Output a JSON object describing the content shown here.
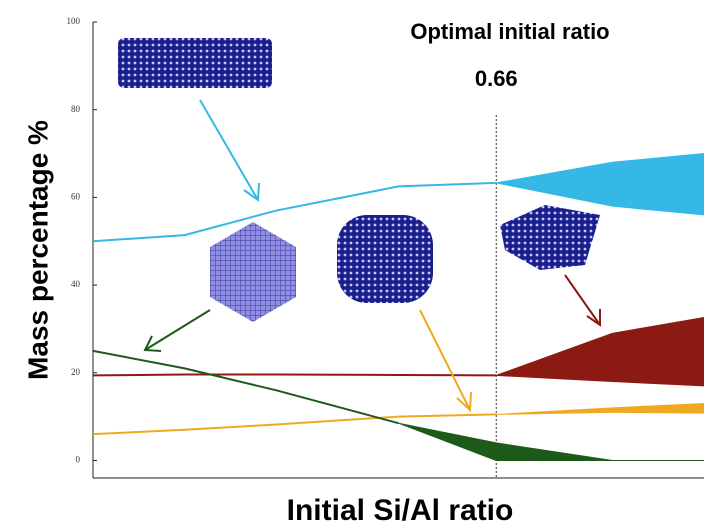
{
  "chart_data": {
    "type": "line",
    "annotation": "Optimal initial ratio",
    "vline": 0.66,
    "xlabel": "Initial Si/Al ratio",
    "ylabel": "Mass percentage %",
    "xlim": [
      0,
      1
    ],
    "ylim": [
      -4,
      100
    ],
    "yticks": [
      0,
      20,
      40,
      60,
      80,
      100
    ],
    "x": [
      0,
      0.15,
      0.3,
      0.5,
      0.66,
      0.85,
      1.0
    ],
    "series": [
      {
        "color": "#35b8e6",
        "values": [
          50,
          51.4,
          57,
          62.5,
          63.3,
          null,
          null
        ],
        "upper": [
          null,
          null,
          null,
          null,
          63.3,
          68,
          70
        ],
        "lower": [
          null,
          null,
          null,
          null,
          63.3,
          58,
          56
        ]
      },
      {
        "color": "#8b1a12",
        "values": [
          19.4,
          19.6,
          19.6,
          19.5,
          19.4,
          null,
          null
        ],
        "upper": [
          null,
          null,
          null,
          null,
          19.4,
          29,
          32.6
        ],
        "lower": [
          null,
          null,
          null,
          null,
          19.4,
          18,
          17
        ]
      },
      {
        "color": "#f0a820",
        "values": [
          6,
          7,
          8.2,
          10,
          10.5,
          null,
          null
        ],
        "upper": [
          null,
          null,
          null,
          null,
          10.5,
          12,
          13
        ],
        "lower": [
          null,
          null,
          null,
          null,
          10.5,
          11,
          10.8
        ]
      },
      {
        "color": "#1e5a1a",
        "values": [
          25,
          21,
          16,
          8.5,
          null,
          null,
          null
        ],
        "upper": [
          null,
          null,
          null,
          8.5,
          4,
          0,
          0
        ],
        "lower": [
          null,
          null,
          null,
          8.5,
          0,
          0,
          0
        ]
      }
    ]
  }
}
